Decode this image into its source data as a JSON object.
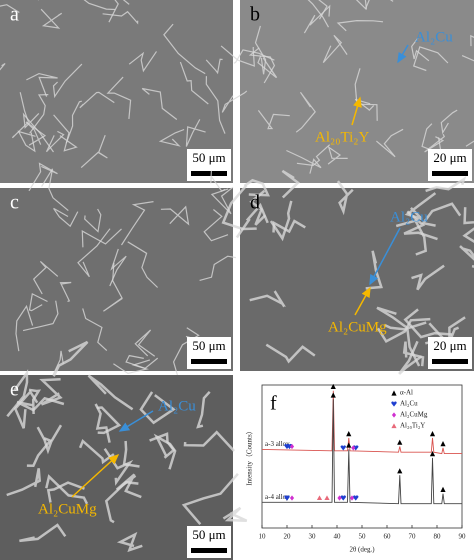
{
  "panels": [
    {
      "label": "a",
      "scale_bar": "50 μm"
    },
    {
      "label": "b",
      "scale_bar": "20 μm",
      "annotations": [
        {
          "text": "Al₂Cu",
          "color": "#3a8fd8"
        },
        {
          "text": "Al₂₀Ti₂Y",
          "color": "#f5b800"
        }
      ]
    },
    {
      "label": "c",
      "scale_bar": "50 μm"
    },
    {
      "label": "d",
      "scale_bar": "20 μm",
      "annotations": [
        {
          "text": "Al₂Cu",
          "color": "#3a8fd8"
        },
        {
          "text": "Al₂CuMg",
          "color": "#f5b800"
        }
      ]
    },
    {
      "label": "e",
      "scale_bar": "50 μm",
      "annotations": [
        {
          "text": "Al₂Cu",
          "color": "#3a8fd8"
        },
        {
          "text": "Al₂CuMg",
          "color": "#f5b800"
        }
      ]
    }
  ],
  "chart_data": {
    "type": "line",
    "label": "f",
    "x_label": "2θ (deg.)",
    "y_label": "Intensity（Counts）",
    "xlim": [
      10,
      90
    ],
    "xticks": [
      10,
      20,
      30,
      40,
      50,
      60,
      70,
      80,
      90
    ],
    "ylim": [
      0,
      100
    ],
    "series": [
      {
        "name": "a-3 alloy",
        "color": "#d9534f",
        "x": [
          10,
          38,
          38.5,
          39,
          44.2,
          44.7,
          45.2,
          64.6,
          65.1,
          65.6,
          77.7,
          78.2,
          78.7,
          81.9,
          82.4,
          82.9,
          90
        ],
        "values": [
          55,
          54,
          96,
          54,
          54,
          63,
          54,
          53,
          57,
          53,
          53,
          63,
          53,
          52,
          56,
          52,
          52
        ]
      },
      {
        "name": "a-4 alloy",
        "color": "#444444",
        "x": [
          10,
          38,
          38.5,
          39,
          44.2,
          44.7,
          45.2,
          64.6,
          65.1,
          65.6,
          77.7,
          78.2,
          78.7,
          81.9,
          82.4,
          82.9,
          90
        ],
        "values": [
          18,
          18,
          90,
          18,
          18,
          55,
          18,
          17,
          37,
          17,
          17,
          49,
          17,
          17,
          24,
          17,
          17
        ]
      }
    ],
    "markers": [
      {
        "name": "α-Al",
        "color": "#000000",
        "shape": "club",
        "x": [
          38.5,
          44.7,
          65.1,
          78.2,
          82.4,
          38.5,
          44.7,
          65.1,
          78.2,
          82.4
        ],
        "y": [
          99,
          66,
          60,
          66,
          59,
          93,
          58,
          40,
          52,
          27
        ]
      },
      {
        "name": "Al₂Cu",
        "color": "#1f3fd0",
        "shape": "heart",
        "x": [
          20,
          21,
          42.5,
          47.5,
          20,
          42.5,
          47.5
        ],
        "y": [
          57,
          57,
          56,
          56,
          21,
          21,
          21
        ]
      },
      {
        "name": "Al₂CuMg",
        "color": "#d030d0",
        "shape": "diamond",
        "x": [
          22,
          46.5,
          22,
          41,
          46
        ],
        "y": [
          57,
          56,
          21,
          21,
          21
        ]
      },
      {
        "name": "Al₂₀Ti₂Y",
        "color": "#e86a7a",
        "shape": "triangle",
        "x": [
          33,
          36
        ],
        "y": [
          21,
          21
        ]
      }
    ]
  }
}
